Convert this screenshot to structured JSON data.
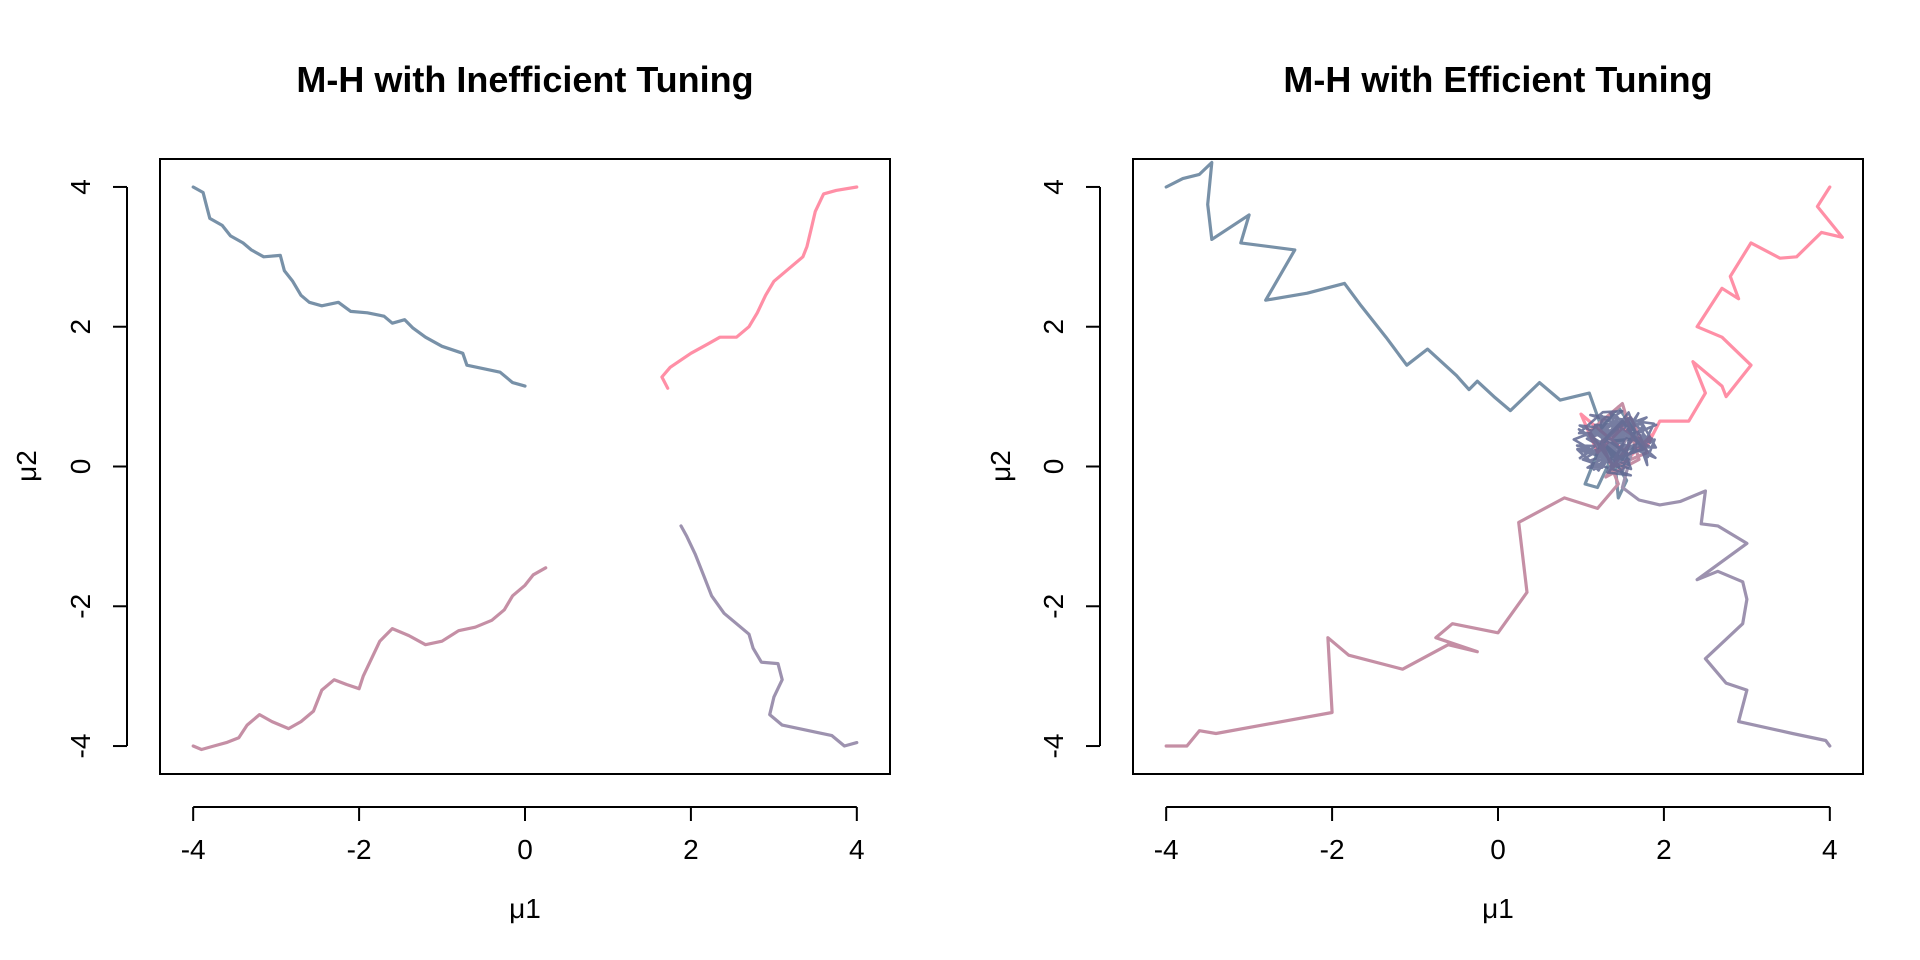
{
  "colors": {
    "chain_1": "#7891A8",
    "chain_2": "#FF8FA6",
    "chain_3": "#C58FA5",
    "chain_4": "#9D92AF",
    "overlap": "#5E6690"
  },
  "chart_data": [
    {
      "type": "line",
      "title": "M-H with Inefficient Tuning",
      "xlabel": "μ1",
      "ylabel": "μ2",
      "xlim": [
        -4.4,
        4.4
      ],
      "ylim": [
        -4.4,
        4.4
      ],
      "xticks": [
        "-4",
        "-2",
        "0",
        "2",
        "4"
      ],
      "yticks": [
        "-4",
        "-2",
        "0",
        "2",
        "4"
      ],
      "grid": false,
      "series": [
        {
          "color": "#7891A8",
          "points": [
            [
              -4,
              4
            ],
            [
              -3.88,
              3.92
            ],
            [
              -3.85,
              3.78
            ],
            [
              -3.8,
              3.55
            ],
            [
              -3.65,
              3.45
            ],
            [
              -3.55,
              3.3
            ],
            [
              -3.4,
              3.2
            ],
            [
              -3.3,
              3.1
            ],
            [
              -3.15,
              3.0
            ],
            [
              -2.95,
              3.02
            ],
            [
              -2.9,
              2.8
            ],
            [
              -2.8,
              2.65
            ],
            [
              -2.7,
              2.45
            ],
            [
              -2.6,
              2.35
            ],
            [
              -2.45,
              2.3
            ],
            [
              -2.25,
              2.35
            ],
            [
              -2.1,
              2.22
            ],
            [
              -1.9,
              2.2
            ],
            [
              -1.7,
              2.15
            ],
            [
              -1.6,
              2.05
            ],
            [
              -1.45,
              2.1
            ],
            [
              -1.35,
              1.98
            ],
            [
              -1.2,
              1.85
            ],
            [
              -1.0,
              1.72
            ],
            [
              -0.75,
              1.62
            ],
            [
              -0.7,
              1.45
            ],
            [
              -0.5,
              1.4
            ],
            [
              -0.3,
              1.35
            ],
            [
              -0.15,
              1.2
            ],
            [
              0.0,
              1.15
            ]
          ]
        },
        {
          "color": "#FF8FA6",
          "points": [
            [
              1.72,
              1.12
            ],
            [
              1.65,
              1.28
            ],
            [
              1.75,
              1.42
            ],
            [
              1.85,
              1.5
            ],
            [
              2.0,
              1.62
            ],
            [
              2.2,
              1.75
            ],
            [
              2.35,
              1.85
            ],
            [
              2.55,
              1.85
            ],
            [
              2.7,
              2.0
            ],
            [
              2.8,
              2.2
            ],
            [
              2.9,
              2.45
            ],
            [
              3.0,
              2.65
            ],
            [
              3.15,
              2.8
            ],
            [
              3.35,
              3.0
            ],
            [
              3.4,
              3.15
            ],
            [
              3.45,
              3.4
            ],
            [
              3.5,
              3.65
            ],
            [
              3.6,
              3.9
            ],
            [
              3.75,
              3.95
            ],
            [
              4.0,
              4.0
            ]
          ]
        },
        {
          "color": "#C58FA5",
          "points": [
            [
              -4,
              -4
            ],
            [
              -3.9,
              -4.05
            ],
            [
              -3.75,
              -4.0
            ],
            [
              -3.6,
              -3.95
            ],
            [
              -3.45,
              -3.88
            ],
            [
              -3.35,
              -3.7
            ],
            [
              -3.2,
              -3.55
            ],
            [
              -3.05,
              -3.65
            ],
            [
              -2.85,
              -3.75
            ],
            [
              -2.7,
              -3.65
            ],
            [
              -2.55,
              -3.5
            ],
            [
              -2.45,
              -3.2
            ],
            [
              -2.3,
              -3.05
            ],
            [
              -2.15,
              -3.12
            ],
            [
              -2.0,
              -3.18
            ],
            [
              -1.95,
              -3.0
            ],
            [
              -1.85,
              -2.75
            ],
            [
              -1.75,
              -2.5
            ],
            [
              -1.6,
              -2.32
            ],
            [
              -1.4,
              -2.42
            ],
            [
              -1.2,
              -2.55
            ],
            [
              -1.0,
              -2.5
            ],
            [
              -0.8,
              -2.35
            ],
            [
              -0.6,
              -2.3
            ],
            [
              -0.4,
              -2.2
            ],
            [
              -0.25,
              -2.05
            ],
            [
              -0.15,
              -1.85
            ],
            [
              0.0,
              -1.7
            ],
            [
              0.1,
              -1.55
            ],
            [
              0.25,
              -1.45
            ]
          ]
        },
        {
          "color": "#9D92AF",
          "points": [
            [
              1.88,
              -0.85
            ],
            [
              1.95,
              -1.0
            ],
            [
              2.05,
              -1.25
            ],
            [
              2.15,
              -1.55
            ],
            [
              2.25,
              -1.85
            ],
            [
              2.4,
              -2.1
            ],
            [
              2.55,
              -2.25
            ],
            [
              2.7,
              -2.4
            ],
            [
              2.75,
              -2.6
            ],
            [
              2.85,
              -2.8
            ],
            [
              3.05,
              -2.82
            ],
            [
              3.1,
              -3.05
            ],
            [
              3.0,
              -3.3
            ],
            [
              2.95,
              -3.55
            ],
            [
              3.1,
              -3.7
            ],
            [
              3.3,
              -3.75
            ],
            [
              3.5,
              -3.8
            ],
            [
              3.7,
              -3.85
            ],
            [
              3.85,
              -4.0
            ],
            [
              4.0,
              -3.95
            ]
          ]
        }
      ]
    },
    {
      "type": "line",
      "title": "M-H with Efficient Tuning",
      "xlabel": "μ1",
      "ylabel": "μ2",
      "xlim": [
        -4.4,
        4.4
      ],
      "ylim": [
        -4.4,
        4.4
      ],
      "xticks": [
        "-4",
        "-2",
        "0",
        "2",
        "4"
      ],
      "yticks": [
        "-4",
        "-2",
        "0",
        "2",
        "4"
      ],
      "grid": false,
      "series": [
        {
          "color": "#7891A8",
          "points": [
            [
              -4,
              4
            ],
            [
              -3.8,
              4.12
            ],
            [
              -3.6,
              4.18
            ],
            [
              -3.45,
              4.35
            ],
            [
              -3.5,
              3.75
            ],
            [
              -3.45,
              3.25
            ],
            [
              -3.0,
              3.6
            ],
            [
              -3.1,
              3.2
            ],
            [
              -2.45,
              3.1
            ],
            [
              -2.8,
              2.38
            ],
            [
              -2.3,
              2.48
            ],
            [
              -1.85,
              2.62
            ],
            [
              -1.65,
              2.3
            ],
            [
              -1.35,
              1.85
            ],
            [
              -1.1,
              1.45
            ],
            [
              -0.85,
              1.68
            ],
            [
              -0.5,
              1.3
            ],
            [
              -0.35,
              1.1
            ],
            [
              -0.25,
              1.22
            ],
            [
              -0.05,
              1.0
            ],
            [
              0.15,
              0.8
            ],
            [
              0.5,
              1.2
            ],
            [
              0.75,
              0.95
            ],
            [
              1.1,
              1.05
            ],
            [
              1.25,
              0.55
            ],
            [
              1.45,
              0.85
            ],
            [
              1.65,
              0.5
            ],
            [
              1.5,
              0.1
            ],
            [
              1.3,
              0.3
            ],
            [
              1.55,
              -0.2
            ],
            [
              1.45,
              -0.45
            ],
            [
              1.4,
              0.2
            ],
            [
              1.2,
              -0.3
            ],
            [
              1.05,
              -0.25
            ],
            [
              1.25,
              0.35
            ],
            [
              1.7,
              0.4
            ],
            [
              1.5,
              0.0
            ]
          ]
        },
        {
          "color": "#FF8FA6",
          "points": [
            [
              4.0,
              4.0
            ],
            [
              3.85,
              3.72
            ],
            [
              4.15,
              3.28
            ],
            [
              3.9,
              3.35
            ],
            [
              3.6,
              3.0
            ],
            [
              3.4,
              2.98
            ],
            [
              3.05,
              3.2
            ],
            [
              2.8,
              2.72
            ],
            [
              2.9,
              2.4
            ],
            [
              2.7,
              2.55
            ],
            [
              2.4,
              2.0
            ],
            [
              2.7,
              1.85
            ],
            [
              3.05,
              1.45
            ],
            [
              2.75,
              1.0
            ],
            [
              2.7,
              1.15
            ],
            [
              2.35,
              1.5
            ],
            [
              2.5,
              1.05
            ],
            [
              2.3,
              0.65
            ],
            [
              1.95,
              0.65
            ],
            [
              1.8,
              0.3
            ],
            [
              1.5,
              0.55
            ],
            [
              1.2,
              0.2
            ],
            [
              1.0,
              0.75
            ],
            [
              1.3,
              0.45
            ],
            [
              1.6,
              0.15
            ],
            [
              1.85,
              0.45
            ]
          ]
        },
        {
          "color": "#C58FA5",
          "points": [
            [
              -4,
              -4
            ],
            [
              -3.75,
              -4.0
            ],
            [
              -3.6,
              -3.78
            ],
            [
              -3.4,
              -3.82
            ],
            [
              -2.0,
              -3.52
            ],
            [
              -2.05,
              -2.45
            ],
            [
              -1.8,
              -2.7
            ],
            [
              -1.15,
              -2.9
            ],
            [
              -0.6,
              -2.55
            ],
            [
              -0.25,
              -2.65
            ],
            [
              -0.75,
              -2.45
            ],
            [
              -0.55,
              -2.25
            ],
            [
              0.0,
              -2.38
            ],
            [
              0.35,
              -1.8
            ],
            [
              0.25,
              -0.8
            ],
            [
              0.8,
              -0.45
            ],
            [
              1.2,
              -0.6
            ],
            [
              1.45,
              -0.25
            ],
            [
              1.25,
              0.35
            ],
            [
              1.6,
              0.7
            ],
            [
              1.8,
              0.2
            ],
            [
              1.4,
              0.0
            ],
            [
              1.1,
              0.5
            ],
            [
              1.5,
              0.9
            ],
            [
              1.7,
              0.1
            ],
            [
              1.3,
              -0.15
            ],
            [
              1.6,
              0.35
            ]
          ]
        },
        {
          "color": "#9D92AF",
          "points": [
            [
              4.0,
              -4.0
            ],
            [
              3.95,
              -3.92
            ],
            [
              3.55,
              -3.82
            ],
            [
              2.9,
              -3.65
            ],
            [
              3.0,
              -3.2
            ],
            [
              2.75,
              -3.1
            ],
            [
              2.5,
              -2.75
            ],
            [
              2.95,
              -2.25
            ],
            [
              3.0,
              -1.9
            ],
            [
              2.95,
              -1.65
            ],
            [
              2.65,
              -1.5
            ],
            [
              2.4,
              -1.62
            ],
            [
              3.0,
              -1.1
            ],
            [
              2.65,
              -0.85
            ],
            [
              2.45,
              -0.82
            ],
            [
              2.5,
              -0.35
            ],
            [
              2.2,
              -0.5
            ],
            [
              1.95,
              -0.55
            ],
            [
              1.7,
              -0.48
            ],
            [
              1.5,
              -0.3
            ],
            [
              1.6,
              0.15
            ],
            [
              1.3,
              0.4
            ],
            [
              1.5,
              0.65
            ],
            [
              1.75,
              0.25
            ],
            [
              1.4,
              0.1
            ],
            [
              1.55,
              0.4
            ]
          ]
        }
      ],
      "cluster": {
        "color": "#5E6690",
        "center": [
          1.45,
          0.35
        ],
        "spread": 0.55
      }
    }
  ]
}
